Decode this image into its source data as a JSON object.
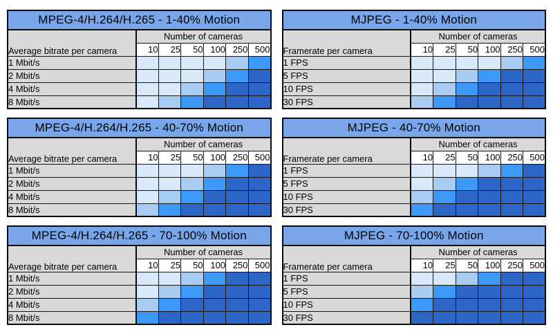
{
  "palette": {
    "title_bar_blue": "#78A6E9",
    "label_gray": "#D9D9D9",
    "header_cell_white": "#FFFFFF",
    "border_black": "#0A0A0A",
    "level_colors": [
      "#D9E9FA",
      "#A9CCF2",
      "#3D99F7",
      "#2C66C6"
    ]
  },
  "chart_data": [
    {
      "type": "heatmap",
      "title": "MPEG-4/H.264/H.265 - 1-40% Motion",
      "x_label": "Number of cameras",
      "x": [
        "10",
        "25",
        "50",
        "100",
        "250",
        "500"
      ],
      "y_label": "Average bitrate per camera",
      "y": [
        "1 Mbit/s",
        "2 Mbit/s",
        "4 Mbit/s",
        "8 Mbit/s"
      ],
      "values": [
        [
          0,
          0,
          0,
          0,
          1,
          2
        ],
        [
          0,
          0,
          0,
          1,
          2,
          3
        ],
        [
          0,
          0,
          1,
          2,
          3,
          3
        ],
        [
          0,
          1,
          2,
          3,
          3,
          3
        ]
      ]
    },
    {
      "type": "heatmap",
      "title": "MJPEG - 1-40% Motion",
      "x_label": "Number of cameras",
      "x": [
        "10",
        "25",
        "50",
        "100",
        "250",
        "500"
      ],
      "y_label": "Framerate per camera",
      "y": [
        "1 FPS",
        "5 FPS",
        "10 FPS",
        "30 FPS"
      ],
      "values": [
        [
          0,
          0,
          0,
          0,
          1,
          2
        ],
        [
          0,
          0,
          1,
          2,
          3,
          3
        ],
        [
          0,
          1,
          2,
          3,
          3,
          3
        ],
        [
          1,
          2,
          3,
          3,
          3,
          3
        ]
      ]
    },
    {
      "type": "heatmap",
      "title": "MPEG-4/H.264/H.265 - 40-70% Motion",
      "x_label": "Number of cameras",
      "x": [
        "10",
        "25",
        "50",
        "100",
        "250",
        "500"
      ],
      "y_label": "Average bitrate per camera",
      "y": [
        "1 Mbit/s",
        "2 Mbit/s",
        "4 Mbit/s",
        "8 Mbit/s"
      ],
      "values": [
        [
          0,
          0,
          0,
          1,
          2,
          3
        ],
        [
          0,
          0,
          1,
          2,
          3,
          3
        ],
        [
          0,
          1,
          2,
          3,
          3,
          3
        ],
        [
          1,
          2,
          3,
          3,
          3,
          3
        ]
      ]
    },
    {
      "type": "heatmap",
      "title": "MJPEG - 40-70% Motion",
      "x_label": "Number of cameras",
      "x": [
        "10",
        "25",
        "50",
        "100",
        "250",
        "500"
      ],
      "y_label": "Framerate per camera",
      "y": [
        "1 FPS",
        "5 FPS",
        "10 FPS",
        "30 FPS"
      ],
      "values": [
        [
          0,
          0,
          0,
          1,
          2,
          3
        ],
        [
          0,
          1,
          2,
          3,
          3,
          3
        ],
        [
          1,
          2,
          3,
          3,
          3,
          3
        ],
        [
          2,
          3,
          3,
          3,
          3,
          3
        ]
      ]
    },
    {
      "type": "heatmap",
      "title": "MPEG-4/H.264/H.265 - 70-100% Motion",
      "x_label": "Number of cameras",
      "x": [
        "10",
        "25",
        "50",
        "100",
        "250",
        "500"
      ],
      "y_label": "Average bitrate per camera",
      "y": [
        "1 Mbit/s",
        "2 Mbit/s",
        "4 Mbit/s",
        "8 Mbit/s"
      ],
      "values": [
        [
          0,
          0,
          1,
          2,
          3,
          3
        ],
        [
          0,
          1,
          2,
          3,
          3,
          3
        ],
        [
          1,
          2,
          3,
          3,
          3,
          3
        ],
        [
          2,
          3,
          3,
          3,
          3,
          3
        ]
      ]
    },
    {
      "type": "heatmap",
      "title": "MJPEG - 70-100% Motion",
      "x_label": "Number of cameras",
      "x": [
        "10",
        "25",
        "50",
        "100",
        "250",
        "500"
      ],
      "y_label": "Framerate per camera",
      "y": [
        "1 FPS",
        "5 FPS",
        "10 FPS",
        "30 FPS"
      ],
      "values": [
        [
          0,
          0,
          1,
          2,
          3,
          3
        ],
        [
          1,
          2,
          3,
          3,
          3,
          3
        ],
        [
          2,
          3,
          3,
          3,
          3,
          3
        ],
        [
          3,
          3,
          3,
          3,
          3,
          3
        ]
      ]
    }
  ]
}
